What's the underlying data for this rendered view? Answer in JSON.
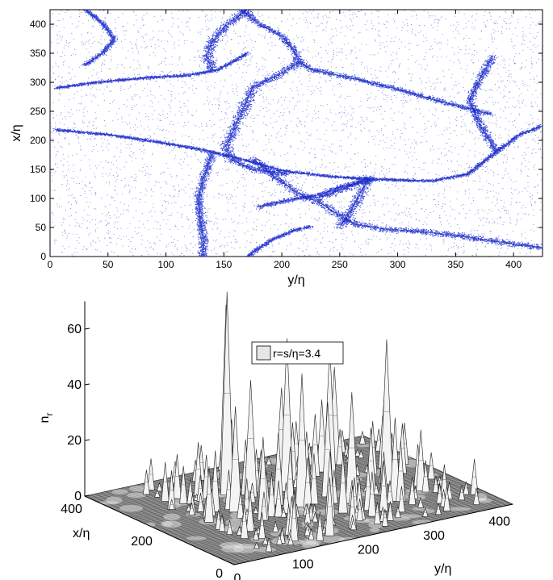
{
  "chart_data": [
    {
      "type": "scatter",
      "xlabel": "y/η",
      "ylabel": "x/η",
      "xlim": [
        0,
        425
      ],
      "ylim": [
        0,
        425
      ],
      "xticks": [
        "0",
        "50",
        "100",
        "150",
        "200",
        "250",
        "300",
        "350",
        "400"
      ],
      "yticks": [
        "0",
        "50",
        "100",
        "150",
        "200",
        "250",
        "300",
        "350",
        "400"
      ],
      "point_color": "#1f2fd0",
      "grid": false,
      "filaments": [
        [
          [
            5,
            218
          ],
          [
            50,
            210
          ],
          [
            100,
            195
          ],
          [
            140,
            180
          ],
          [
            170,
            165
          ],
          [
            200,
            148
          ],
          [
            240,
            138
          ],
          [
            280,
            133
          ],
          [
            330,
            130
          ],
          [
            360,
            142
          ],
          [
            385,
            180
          ],
          [
            405,
            210
          ],
          [
            425,
            225
          ]
        ],
        [
          [
            165,
            425
          ],
          [
            180,
            400
          ],
          [
            200,
            380
          ],
          [
            210,
            355
          ],
          [
            215,
            335
          ],
          [
            225,
            322
          ],
          [
            265,
            305
          ],
          [
            300,
            288
          ],
          [
            335,
            268
          ],
          [
            360,
            255
          ],
          [
            380,
            245
          ]
        ],
        [
          [
            215,
            335
          ],
          [
            195,
            310
          ],
          [
            175,
            292
          ],
          [
            168,
            260
          ],
          [
            160,
            225
          ],
          [
            152,
            190
          ],
          [
            155,
            168
          ],
          [
            175,
            150
          ],
          [
            205,
            142
          ]
        ],
        [
          [
            5,
            290
          ],
          [
            40,
            300
          ],
          [
            85,
            308
          ],
          [
            120,
            312
          ],
          [
            145,
            322
          ],
          [
            160,
            338
          ],
          [
            170,
            350
          ]
        ],
        [
          [
            140,
            180
          ],
          [
            135,
            150
          ],
          [
            130,
            120
          ],
          [
            128,
            90
          ],
          [
            130,
            60
          ],
          [
            132,
            30
          ],
          [
            132,
            0
          ]
        ],
        [
          [
            175,
            168
          ],
          [
            195,
            135
          ],
          [
            215,
            108
          ],
          [
            235,
            90
          ],
          [
            250,
            70
          ],
          [
            265,
            55
          ],
          [
            285,
            48
          ],
          [
            325,
            42
          ],
          [
            355,
            35
          ],
          [
            385,
            26
          ],
          [
            425,
            15
          ]
        ],
        [
          [
            170,
            0
          ],
          [
            190,
            28
          ],
          [
            210,
            45
          ],
          [
            225,
            52
          ]
        ],
        [
          [
            280,
            133
          ],
          [
            250,
            120
          ],
          [
            230,
            105
          ],
          [
            200,
            95
          ],
          [
            178,
            85
          ]
        ],
        [
          [
            170,
            425
          ],
          [
            150,
            395
          ],
          [
            140,
            370
          ],
          [
            135,
            345
          ],
          [
            140,
            320
          ]
        ],
        [
          [
            30,
            425
          ],
          [
            45,
            402
          ],
          [
            55,
            375
          ],
          [
            45,
            350
          ],
          [
            30,
            330
          ]
        ],
        [
          [
            385,
            180
          ],
          [
            370,
            230
          ],
          [
            362,
            270
          ],
          [
            372,
            310
          ],
          [
            382,
            345
          ]
        ],
        [
          [
            230,
            100
          ],
          [
            255,
            118
          ],
          [
            275,
            136
          ],
          [
            260,
            80
          ],
          [
            250,
            50
          ]
        ]
      ]
    },
    {
      "type": "surface",
      "legend": "r=s/η=3.4",
      "zlabel": "n",
      "zlabel_sub": "r",
      "xlabel": "x/η",
      "ylabel": "y/η",
      "zlim": [
        0,
        70
      ],
      "zticks": [
        0,
        20,
        40,
        60
      ],
      "xticks": [
        0,
        200,
        400
      ],
      "yticks": [
        0,
        100,
        200,
        300,
        400
      ],
      "legend_location": "top",
      "peaks": [
        [
          300,
          150,
          73
        ],
        [
          340,
          170,
          65
        ],
        [
          260,
          220,
          55
        ],
        [
          250,
          280,
          50
        ],
        [
          180,
          200,
          48
        ],
        [
          200,
          340,
          52
        ],
        [
          150,
          260,
          40
        ],
        [
          330,
          330,
          35
        ],
        [
          220,
          120,
          38
        ],
        [
          160,
          130,
          30
        ],
        [
          280,
          380,
          28
        ],
        [
          120,
          310,
          30
        ],
        [
          270,
          170,
          42
        ],
        [
          200,
          250,
          34
        ],
        [
          350,
          260,
          30
        ],
        [
          100,
          200,
          25
        ],
        [
          310,
          300,
          26
        ],
        [
          240,
          100,
          22
        ],
        [
          380,
          200,
          20
        ],
        [
          140,
          360,
          22
        ],
        [
          60,
          120,
          15
        ],
        [
          230,
          380,
          18
        ],
        [
          290,
          60,
          14
        ],
        [
          170,
          300,
          24
        ],
        [
          330,
          90,
          16
        ],
        [
          110,
          250,
          12
        ],
        [
          260,
          250,
          20
        ],
        [
          210,
          180,
          26
        ],
        [
          380,
          360,
          12
        ],
        [
          90,
          320,
          10
        ],
        [
          40,
          240,
          8
        ],
        [
          300,
          250,
          21
        ]
      ]
    }
  ]
}
